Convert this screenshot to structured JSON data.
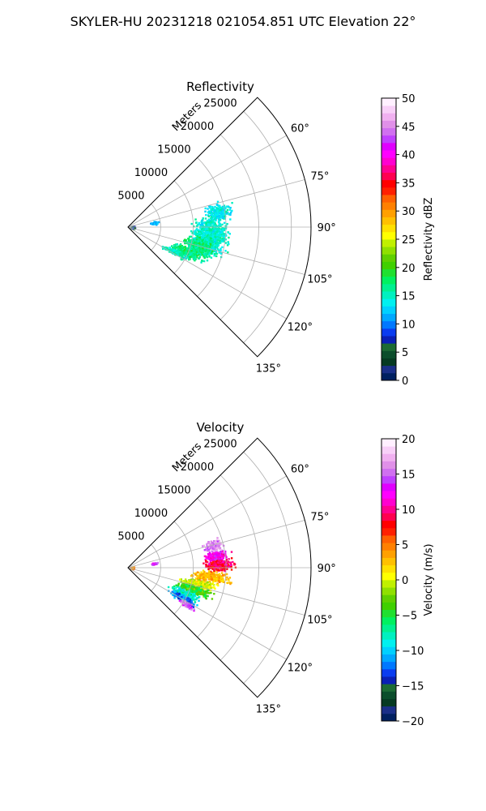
{
  "figure": {
    "suptitle": "SKYLER-HU  20231218  021054.851 UTC Elevation 22°"
  },
  "colors": {
    "grid": "#b0b0b0",
    "axis": "#000000"
  },
  "chart_data": [
    {
      "type": "heatmap",
      "subtype": "polar-ppi",
      "title": "Reflectivity",
      "radial_axis_label": "Meters",
      "radial_ticks": [
        "5000",
        "10000",
        "15000",
        "20000",
        "25000"
      ],
      "angular_ticks": [
        "60°",
        "75°",
        "90°",
        "105°",
        "120°",
        "135°"
      ],
      "azimuth_range_deg": [
        45,
        135
      ],
      "range_max_m": 28000,
      "grid": true,
      "colorbar": {
        "label": "Reflectivity dBZ",
        "ticks": [
          "0",
          "5",
          "10",
          "15",
          "20",
          "25",
          "30",
          "35",
          "40",
          "45",
          "50"
        ],
        "min": 0,
        "max": 50,
        "stops": [
          "#002060",
          "#1a2f88",
          "#063a22",
          "#0b4d2b",
          "#1c6b34",
          "#0a1fb5",
          "#0a3cf0",
          "#0078ff",
          "#00a8ff",
          "#00d0ff",
          "#00f0f0",
          "#00f0c0",
          "#00f090",
          "#00f060",
          "#20e030",
          "#40d000",
          "#60d000",
          "#90e000",
          "#c0f000",
          "#ffff00",
          "#ffe000",
          "#ffc000",
          "#ffa000",
          "#ff8000",
          "#ff6000",
          "#ff2000",
          "#ff0000",
          "#ff0050",
          "#ff0090",
          "#ff00d0",
          "#ff00ff",
          "#e000ff",
          "#c040ff",
          "#d070f0",
          "#e090e8",
          "#f0b0f0",
          "#f8d0f8",
          "#fff0ff"
        ]
      },
      "echo_blobs": [
        {
          "az": 96,
          "range": 12500,
          "daz": 18,
          "dr": 3500,
          "value": 15,
          "density": 0.55
        },
        {
          "az": 80,
          "range": 14000,
          "daz": 7,
          "dr": 2500,
          "value": 14,
          "density": 0.5
        },
        {
          "az": 105,
          "range": 11000,
          "daz": 9,
          "dr": 3000,
          "value": 17,
          "density": 0.55
        },
        {
          "az": 113,
          "range": 9500,
          "daz": 6,
          "dr": 3500,
          "value": 17,
          "density": 0.5
        },
        {
          "az": 118,
          "range": 8000,
          "daz": 4,
          "dr": 2500,
          "value": 15,
          "density": 0.45
        },
        {
          "az": 80,
          "range": 4000,
          "daz": 4,
          "dr": 1000,
          "value": 11,
          "density": 0.3
        },
        {
          "az": 88,
          "range": 600,
          "daz": 20,
          "dr": 500,
          "value": 7,
          "density": 0.35
        }
      ]
    },
    {
      "type": "heatmap",
      "subtype": "polar-ppi",
      "title": "Velocity",
      "radial_axis_label": "Meters",
      "radial_ticks": [
        "5000",
        "10000",
        "15000",
        "20000",
        "25000"
      ],
      "angular_ticks": [
        "60°",
        "75°",
        "90°",
        "105°",
        "120°",
        "135°"
      ],
      "azimuth_range_deg": [
        45,
        135
      ],
      "range_max_m": 28000,
      "grid": true,
      "colorbar": {
        "label": "Velocity (m/s)",
        "ticks": [
          "−20",
          "−15",
          "−10",
          "−5",
          "0",
          "5",
          "10",
          "15",
          "20"
        ],
        "min": -20,
        "max": 20,
        "stops": [
          "#002060",
          "#1a2f88",
          "#063a22",
          "#0b4d2b",
          "#1c6b34",
          "#0a1fb5",
          "#0a3cf0",
          "#0078ff",
          "#00a8ff",
          "#00d0ff",
          "#00f0f0",
          "#00f0c0",
          "#00f090",
          "#00f060",
          "#20e030",
          "#40d000",
          "#60d000",
          "#90e000",
          "#c0f000",
          "#ffff00",
          "#ffe000",
          "#ffc000",
          "#ffa000",
          "#ff8000",
          "#ff6000",
          "#ff2000",
          "#ff0000",
          "#ff0050",
          "#ff0090",
          "#ff00d0",
          "#ff00ff",
          "#e000ff",
          "#c040ff",
          "#d070f0",
          "#e090e8",
          "#f0b0f0",
          "#f8d0f8",
          "#fff0ff"
        ]
      },
      "echo_blobs": [
        {
          "az": 75,
          "range": 13500,
          "daz": 5,
          "dr": 2000,
          "value": 16,
          "density": 0.55
        },
        {
          "az": 82,
          "range": 13500,
          "daz": 4,
          "dr": 2500,
          "value": 12,
          "density": 0.6
        },
        {
          "az": 88,
          "range": 14000,
          "daz": 5,
          "dr": 3000,
          "value": 9,
          "density": 0.6
        },
        {
          "az": 96,
          "range": 12500,
          "daz": 5,
          "dr": 3500,
          "value": 3,
          "density": 0.6
        },
        {
          "az": 103,
          "range": 11000,
          "daz": 5,
          "dr": 3500,
          "value": 0,
          "density": 0.6
        },
        {
          "az": 108,
          "range": 10500,
          "daz": 5,
          "dr": 3500,
          "value": -4,
          "density": 0.6
        },
        {
          "az": 114,
          "range": 9500,
          "daz": 5,
          "dr": 3000,
          "value": -8,
          "density": 0.55
        },
        {
          "az": 119,
          "range": 9500,
          "daz": 4,
          "dr": 3000,
          "value": -12,
          "density": 0.55
        },
        {
          "az": 122,
          "range": 10500,
          "daz": 3,
          "dr": 2000,
          "value": 15,
          "density": 0.35
        },
        {
          "az": 80,
          "range": 4000,
          "daz": 4,
          "dr": 800,
          "value": 13,
          "density": 0.3
        },
        {
          "az": 88,
          "range": 500,
          "daz": 18,
          "dr": 500,
          "value": 5,
          "density": 0.3
        }
      ]
    }
  ]
}
